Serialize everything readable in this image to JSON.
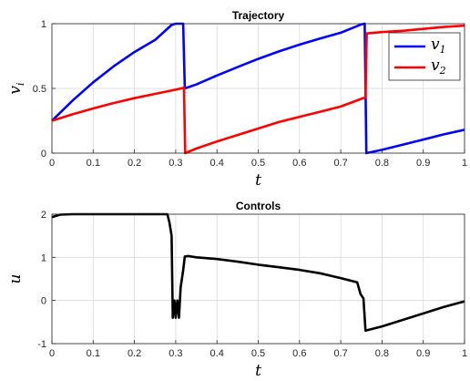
{
  "chart_data": [
    {
      "type": "line",
      "title": "Trajectory",
      "xlabel": "t",
      "ylabel": {
        "base": "v",
        "sub": "i"
      },
      "xlim": [
        0,
        1
      ],
      "ylim": [
        0,
        1
      ],
      "xticks": [
        "0",
        "0.1",
        "0.2",
        "0.3",
        "0.4",
        "0.5",
        "0.6",
        "0.7",
        "0.8",
        "0.9",
        "1"
      ],
      "yticks": [
        "0",
        "0.5",
        "1"
      ],
      "grid": true,
      "legend": "top-right",
      "series": [
        {
          "name": {
            "base": "v",
            "sub": "1"
          },
          "color": "#0000ff",
          "points": [
            [
              0,
              0.25
            ],
            [
              0.05,
              0.406
            ],
            [
              0.1,
              0.547
            ],
            [
              0.15,
              0.672
            ],
            [
              0.2,
              0.781
            ],
            [
              0.25,
              0.875
            ],
            [
              0.29,
              0.99
            ],
            [
              0.3,
              1.0
            ],
            [
              0.318,
              1.0
            ],
            [
              0.322,
              0.5
            ],
            [
              0.35,
              0.53
            ],
            [
              0.4,
              0.6
            ],
            [
              0.45,
              0.665
            ],
            [
              0.5,
              0.728
            ],
            [
              0.55,
              0.786
            ],
            [
              0.6,
              0.838
            ],
            [
              0.65,
              0.886
            ],
            [
              0.7,
              0.93
            ],
            [
              0.75,
              0.995
            ],
            [
              0.758,
              1.0
            ],
            [
              0.762,
              0.0
            ],
            [
              0.8,
              0.025
            ],
            [
              0.85,
              0.065
            ],
            [
              0.9,
              0.105
            ],
            [
              0.95,
              0.145
            ],
            [
              1.0,
              0.18
            ]
          ]
        },
        {
          "name": {
            "base": "v",
            "sub": "2"
          },
          "color": "#ff0000",
          "points": [
            [
              0,
              0.25
            ],
            [
              0.05,
              0.3
            ],
            [
              0.1,
              0.345
            ],
            [
              0.15,
              0.387
            ],
            [
              0.2,
              0.425
            ],
            [
              0.25,
              0.458
            ],
            [
              0.3,
              0.49
            ],
            [
              0.32,
              0.505
            ],
            [
              0.323,
              0.0
            ],
            [
              0.35,
              0.035
            ],
            [
              0.4,
              0.09
            ],
            [
              0.45,
              0.14
            ],
            [
              0.5,
              0.19
            ],
            [
              0.55,
              0.24
            ],
            [
              0.6,
              0.28
            ],
            [
              0.65,
              0.32
            ],
            [
              0.7,
              0.36
            ],
            [
              0.75,
              0.42
            ],
            [
              0.76,
              0.43
            ],
            [
              0.763,
              0.925
            ],
            [
              0.8,
              0.935
            ],
            [
              0.85,
              0.945
            ],
            [
              0.9,
              0.96
            ],
            [
              0.95,
              0.975
            ],
            [
              1.0,
              0.985
            ]
          ]
        }
      ]
    },
    {
      "type": "line",
      "title": "Controls",
      "xlabel": "t",
      "ylabel": "u",
      "xlim": [
        0,
        1
      ],
      "ylim": [
        -1,
        2
      ],
      "xticks": [
        "0",
        "0.1",
        "0.2",
        "0.3",
        "0.4",
        "0.5",
        "0.6",
        "0.7",
        "0.8",
        "0.9",
        "1"
      ],
      "yticks": [
        "-1",
        "0",
        "1",
        "2"
      ],
      "grid": true,
      "series": [
        {
          "color": "#000000",
          "points": [
            [
              0,
              1.93
            ],
            [
              0.01,
              1.96
            ],
            [
              0.02,
              1.99
            ],
            [
              0.05,
              2.0
            ],
            [
              0.1,
              2.0
            ],
            [
              0.15,
              2.0
            ],
            [
              0.2,
              2.0
            ],
            [
              0.25,
              2.0
            ],
            [
              0.28,
              2.0
            ],
            [
              0.285,
              1.8
            ],
            [
              0.29,
              1.5
            ],
            [
              0.293,
              -0.4
            ],
            [
              0.297,
              0.0
            ],
            [
              0.3,
              -0.4
            ],
            [
              0.304,
              0.0
            ],
            [
              0.308,
              -0.4
            ],
            [
              0.312,
              0.3
            ],
            [
              0.318,
              0.7
            ],
            [
              0.322,
              1.02
            ],
            [
              0.33,
              1.03
            ],
            [
              0.35,
              1.0
            ],
            [
              0.4,
              0.96
            ],
            [
              0.45,
              0.9
            ],
            [
              0.5,
              0.83
            ],
            [
              0.55,
              0.77
            ],
            [
              0.6,
              0.71
            ],
            [
              0.65,
              0.63
            ],
            [
              0.7,
              0.52
            ],
            [
              0.74,
              0.42
            ],
            [
              0.748,
              0.15
            ],
            [
              0.755,
              0.05
            ],
            [
              0.76,
              -0.7
            ],
            [
              0.8,
              -0.6
            ],
            [
              0.85,
              -0.45
            ],
            [
              0.9,
              -0.3
            ],
            [
              0.95,
              -0.15
            ],
            [
              1.0,
              -0.02
            ]
          ]
        }
      ]
    }
  ]
}
